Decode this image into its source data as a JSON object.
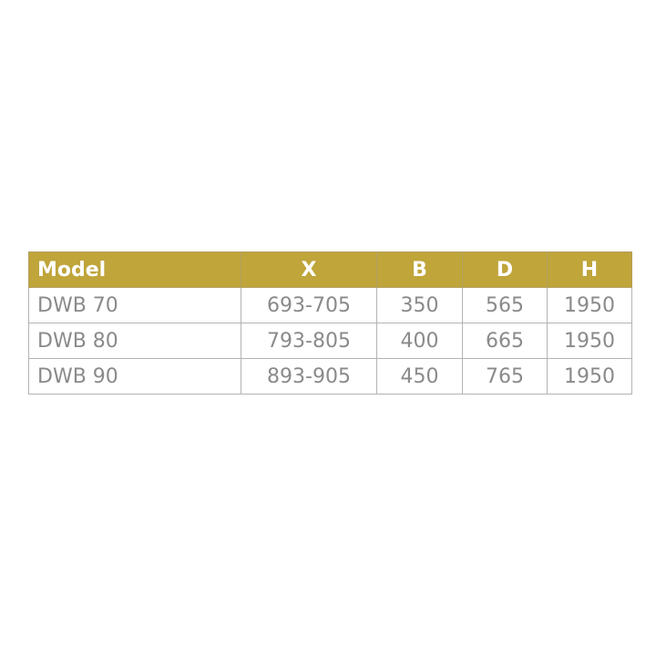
{
  "table": {
    "headers": [
      "Model",
      "X",
      "B",
      "D",
      "H"
    ],
    "rows": [
      [
        "DWB 70",
        "693-705",
        "350",
        "565",
        "1950"
      ],
      [
        "DWB 80",
        "793-805",
        "400",
        "665",
        "1950"
      ],
      [
        "DWB 90",
        "893-905",
        "450",
        "765",
        "1950"
      ]
    ]
  },
  "colors": {
    "header_bg": "#bfa53a",
    "header_text": "#ffffff",
    "cell_text": "#8a8a8a",
    "border": "#b3b3b3"
  }
}
